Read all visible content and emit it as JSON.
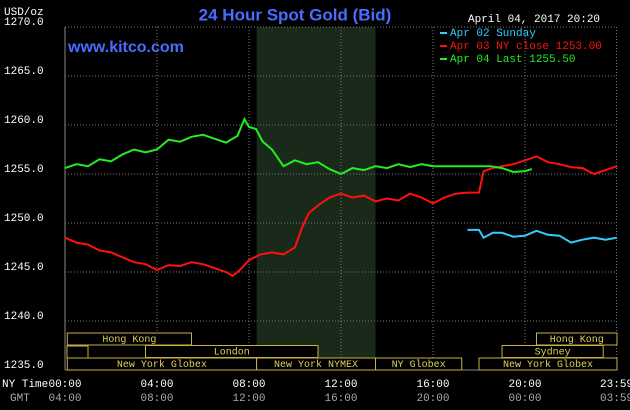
{
  "chart_data": {
    "type": "line",
    "title": "24 Hour Spot Gold (Bid)",
    "site": "www.kitco.com",
    "y_unit": "USD/oz",
    "timestamp": "April 04, 2017 20:20",
    "x_axis_label": "NY Time",
    "x2_axis_label": "GMT",
    "gmt_labels": [
      "04:00",
      "08:00",
      "12:00",
      "16:00",
      "20:00",
      "00:00",
      "03:59"
    ],
    "background": "#000000",
    "shaded_range": [
      8.33,
      13.5
    ],
    "grid": true,
    "xlim": [
      0,
      24
    ],
    "xticks": [
      {
        "value": 0,
        "label": "00:00"
      },
      {
        "value": 4,
        "label": "04:00"
      },
      {
        "value": 8,
        "label": "08:00"
      },
      {
        "value": 12,
        "label": "12:00"
      },
      {
        "value": 16,
        "label": "16:00"
      },
      {
        "value": 20,
        "label": "20:00"
      },
      {
        "value": 23.98,
        "label": "23:59"
      }
    ],
    "ylim": [
      1235,
      1270
    ],
    "yticks": [
      {
        "value": 1235,
        "label": "1235.0"
      },
      {
        "value": 1240,
        "label": "1240.0"
      },
      {
        "value": 1245,
        "label": "1245.0"
      },
      {
        "value": 1250,
        "label": "1250.0"
      },
      {
        "value": 1255,
        "label": "1255.0"
      },
      {
        "value": 1260,
        "label": "1260.0"
      },
      {
        "value": 1265,
        "label": "1265.0"
      },
      {
        "value": 1270,
        "label": "1270.0"
      }
    ],
    "series": [
      {
        "name": "Apr 02 Sunday",
        "color": "#33ccff",
        "x": [
          17.5,
          18,
          18.2,
          18.6,
          19,
          19.5,
          20,
          20.5,
          21,
          21.5,
          22,
          22.5,
          23,
          23.5,
          24
        ],
        "values": [
          1249.3,
          1249.3,
          1248.5,
          1249,
          1249,
          1248.6,
          1248.7,
          1249.2,
          1248.8,
          1248.7,
          1248,
          1248.3,
          1248.5,
          1248.3,
          1248.5
        ]
      },
      {
        "name": "Apr 03 NY close 1253.00",
        "color": "#ff1010",
        "x": [
          0,
          0.5,
          1,
          1.5,
          2,
          2.5,
          3,
          3.5,
          4,
          4.5,
          5,
          5.5,
          6,
          6.5,
          7,
          7.3,
          7.6,
          8,
          8.5,
          9,
          9.5,
          10,
          10.3,
          10.6,
          11,
          11.5,
          12,
          12.5,
          13,
          13.5,
          14,
          14.5,
          15,
          15.5,
          16,
          16.5,
          17,
          17.5,
          18,
          18.2,
          18.6,
          19,
          19.5,
          20,
          20.5,
          21,
          21.5,
          22,
          22.5,
          23,
          23.5,
          24
        ],
        "values": [
          1248.5,
          1248,
          1247.8,
          1247.2,
          1247,
          1246.5,
          1246,
          1245.8,
          1245.2,
          1245.7,
          1245.6,
          1246,
          1245.8,
          1245.4,
          1245,
          1244.6,
          1245.2,
          1246.2,
          1246.8,
          1247,
          1246.8,
          1247.5,
          1249.5,
          1251,
          1251.8,
          1252.6,
          1253,
          1252.6,
          1252.8,
          1252.2,
          1252.5,
          1252.3,
          1253,
          1252.6,
          1252,
          1252.6,
          1253,
          1253.1,
          1253.1,
          1255.3,
          1255.6,
          1255.8,
          1256,
          1256.4,
          1256.8,
          1256.2,
          1256,
          1255.7,
          1255.6,
          1255,
          1255.4,
          1255.8
        ]
      },
      {
        "name": "Apr 04 Last 1255.50",
        "color": "#22ee22",
        "x": [
          0,
          0.5,
          1,
          1.5,
          2,
          2.5,
          3,
          3.5,
          4,
          4.5,
          5,
          5.5,
          6,
          6.5,
          7,
          7.5,
          7.8,
          8,
          8.3,
          8.6,
          9,
          9.5,
          10,
          10.5,
          11,
          11.5,
          12,
          12.5,
          13,
          13.5,
          14,
          14.5,
          15,
          15.5,
          16,
          16.5,
          17,
          17.5,
          18,
          18.5,
          19,
          19.5,
          20,
          20.3
        ],
        "values": [
          1255.6,
          1256,
          1255.8,
          1256.5,
          1256.3,
          1257,
          1257.5,
          1257.2,
          1257.5,
          1258.5,
          1258.3,
          1258.8,
          1259,
          1258.6,
          1258.2,
          1258.9,
          1260.6,
          1259.8,
          1259.6,
          1258.3,
          1257.5,
          1255.8,
          1256.4,
          1256,
          1256.2,
          1255.5,
          1255,
          1255.6,
          1255.4,
          1255.8,
          1255.6,
          1256,
          1255.7,
          1256,
          1255.8,
          1255.8,
          1255.8,
          1255.8,
          1255.8,
          1255.8,
          1255.6,
          1255.2,
          1255.3,
          1255.5
        ]
      }
    ],
    "sessions": [
      {
        "name": "Hong Kong",
        "start": 0.1,
        "end": 5.5
      },
      {
        "name": "London",
        "start": 3.5,
        "end": 11
      },
      {
        "name": "New York Globex",
        "start": 0.1,
        "end": 8.33
      },
      {
        "name": "New York NYMEX",
        "start": 8.33,
        "end": 13.5
      },
      {
        "name": "NY Globex",
        "start": 13.5,
        "end": 17.25
      },
      {
        "name": "Hong Kong",
        "start": 20.5,
        "end": 24
      },
      {
        "name": "Sydney",
        "start": 19,
        "end": 23.4
      },
      {
        "name": "New York Globex",
        "start": 18,
        "end": 24
      }
    ]
  }
}
